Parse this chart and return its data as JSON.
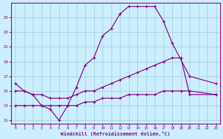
{
  "xlabel": "Windchill (Refroidissement éolien,°C)",
  "background_color": "#cceeff",
  "line_color": "#880088",
  "grid_color": "#99cccc",
  "xlim": [
    -0.5,
    23.5
  ],
  "ylim": [
    10.5,
    27.0
  ],
  "yticks": [
    11,
    13,
    15,
    17,
    19,
    21,
    23,
    25
  ],
  "xticks": [
    0,
    1,
    2,
    3,
    4,
    5,
    6,
    7,
    8,
    9,
    10,
    11,
    12,
    13,
    14,
    15,
    16,
    17,
    18,
    19,
    20,
    21,
    22,
    23
  ],
  "line1_x": [
    0,
    1,
    2,
    3,
    4,
    5,
    6,
    7,
    8,
    9,
    10,
    11,
    12,
    13,
    14,
    15,
    16,
    17,
    18,
    20,
    23
  ],
  "line1_y": [
    16.0,
    15.0,
    14.5,
    13.0,
    12.5,
    11.0,
    13.0,
    15.5,
    18.5,
    19.5,
    22.5,
    23.5,
    25.5,
    26.5,
    26.5,
    26.5,
    26.5,
    24.5,
    21.5,
    17.0,
    16.0
  ],
  "line2_x": [
    0,
    1,
    2,
    3,
    4,
    5,
    6,
    7,
    8,
    9,
    10,
    11,
    12,
    13,
    14,
    15,
    16,
    17,
    18,
    19,
    20,
    23
  ],
  "line2_y": [
    15.0,
    15.0,
    14.5,
    14.5,
    14.0,
    14.0,
    14.0,
    14.5,
    15.0,
    15.0,
    15.5,
    16.0,
    16.5,
    17.0,
    17.5,
    18.0,
    18.5,
    19.0,
    19.5,
    19.5,
    14.5,
    14.5
  ],
  "line3_x": [
    0,
    1,
    2,
    3,
    4,
    5,
    6,
    7,
    8,
    9,
    10,
    11,
    12,
    13,
    14,
    15,
    16,
    17,
    18,
    19,
    20,
    23
  ],
  "line3_y": [
    13.0,
    13.0,
    13.0,
    13.0,
    13.0,
    13.0,
    13.0,
    13.0,
    13.5,
    13.5,
    14.0,
    14.0,
    14.0,
    14.5,
    14.5,
    14.5,
    14.5,
    15.0,
    15.0,
    15.0,
    15.0,
    14.5
  ]
}
